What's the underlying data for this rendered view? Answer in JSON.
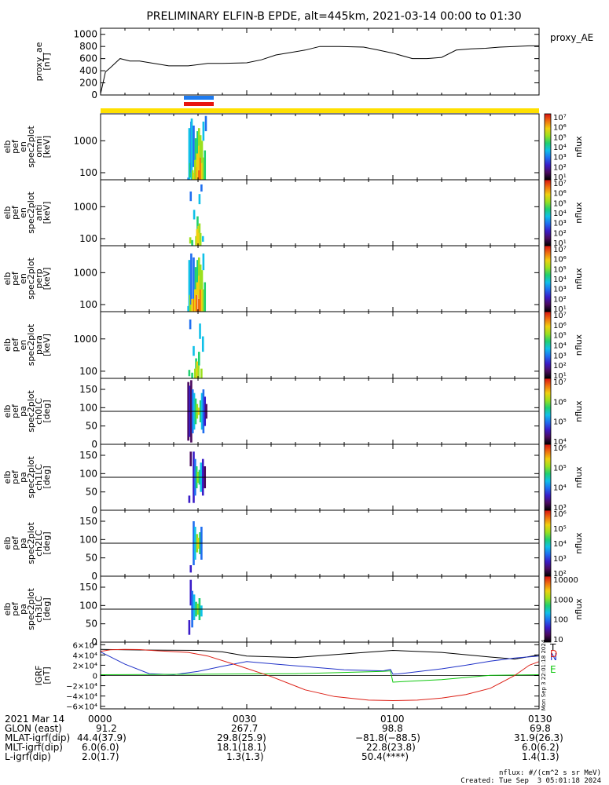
{
  "title": "PRELIMINARY ELFIN-B EPDE, alt=445km, 2021-03-14 00:00 to 01:30",
  "time_axis": {
    "start": "00:00",
    "end": "01:30",
    "ticks": [
      "0000",
      "0030",
      "0100",
      "0130"
    ],
    "tick_minutes": [
      0,
      30,
      60,
      90
    ]
  },
  "colors": {
    "frame": "#000000",
    "ae_line": "#000000",
    "status_yellow": "#ffe000",
    "status_blue": "#1e7bf0",
    "status_red": "#e8150e",
    "grf_total": "#000000",
    "grf_n": "#2032c8",
    "grf_e": "#10c810",
    "grf_d": "#dc1e14"
  },
  "chart_data": [
    {
      "type": "line",
      "id": "proxy_ae",
      "ylabel": "proxy_ae\n[nT]",
      "legend": "proxy_AE",
      "ylim": [
        0,
        1100
      ],
      "yticks": [
        0,
        200,
        400,
        600,
        800,
        1000
      ],
      "x_minutes": [
        0,
        1,
        2,
        4,
        6,
        8,
        14,
        18,
        22,
        25,
        30,
        33,
        36,
        42,
        45,
        49,
        54,
        57,
        60,
        64,
        67,
        70,
        73,
        76,
        79,
        82,
        85,
        88,
        90
      ],
      "values": [
        20,
        380,
        450,
        600,
        560,
        560,
        480,
        480,
        520,
        520,
        530,
        580,
        660,
        740,
        800,
        800,
        790,
        740,
        690,
        600,
        600,
        620,
        740,
        760,
        770,
        790,
        800,
        810,
        810
      ]
    },
    {
      "type": "heatmap",
      "id": "omni",
      "ylabel": "elb\npef\nen\nspec2plot\nomni\n[keV]",
      "ylog": true,
      "ylim": [
        60,
        7000
      ],
      "yticks": [
        100,
        1000
      ],
      "colorbar": {
        "label": "nflux",
        "ticks": [
          "10⁷",
          "10⁶",
          "10⁵",
          "10⁴",
          "10³",
          "10²",
          "10¹"
        ]
      },
      "cells": [
        [
          17.8,
          60,
          70,
          2
        ],
        [
          18.0,
          60,
          2500,
          3
        ],
        [
          18.2,
          70,
          200,
          4
        ],
        [
          18.4,
          100,
          4000,
          2
        ],
        [
          18.5,
          60,
          5000,
          3
        ],
        [
          18.7,
          60,
          120,
          5
        ],
        [
          18.9,
          150,
          3000,
          2
        ],
        [
          19.0,
          60,
          100,
          6
        ],
        [
          19.2,
          60,
          250,
          5
        ],
        [
          19.3,
          250,
          1200,
          4
        ],
        [
          19.5,
          60,
          150,
          7
        ],
        [
          19.6,
          60,
          400,
          6
        ],
        [
          19.7,
          400,
          2000,
          4
        ],
        [
          20.0,
          60,
          120,
          7
        ],
        [
          20.0,
          120,
          700,
          6
        ],
        [
          20.0,
          700,
          2500,
          5
        ],
        [
          20.3,
          60,
          300,
          7
        ],
        [
          20.3,
          300,
          1500,
          5
        ],
        [
          20.6,
          60,
          200,
          6
        ],
        [
          20.6,
          200,
          1000,
          5
        ],
        [
          20.9,
          60,
          300,
          5
        ],
        [
          20.9,
          1000,
          4000,
          3
        ],
        [
          21.2,
          60,
          500,
          4
        ],
        [
          21.4,
          2000,
          6000,
          2
        ]
      ]
    },
    {
      "type": "heatmap",
      "id": "anti",
      "ylabel": "elb\npef\nen\nspec2plot\nanti\n[keV]",
      "ylog": true,
      "ylim": [
        60,
        7000
      ],
      "yticks": [
        100,
        1000
      ],
      "colorbar": {
        "label": "nflux",
        "ticks": [
          "10⁷",
          "10⁶",
          "10⁵",
          "10⁴",
          "10³",
          "10²",
          "10¹"
        ]
      },
      "cells": [
        [
          18.2,
          70,
          110,
          5
        ],
        [
          18.3,
          1500,
          3000,
          2
        ],
        [
          18.6,
          60,
          90,
          4
        ],
        [
          19.0,
          400,
          800,
          3
        ],
        [
          19.4,
          60,
          120,
          5
        ],
        [
          19.6,
          60,
          200,
          6
        ],
        [
          19.7,
          200,
          500,
          4
        ],
        [
          19.9,
          60,
          250,
          6
        ],
        [
          20.1,
          150,
          300,
          5
        ],
        [
          20.1,
          1200,
          2500,
          3
        ],
        [
          20.3,
          60,
          150,
          5
        ],
        [
          20.5,
          3000,
          5000,
          2
        ],
        [
          20.8,
          80,
          120,
          3
        ]
      ]
    },
    {
      "type": "heatmap",
      "id": "perp",
      "ylabel": "elb\npef\nen\nspec2plot\nperp\n[keV]",
      "ylog": true,
      "ylim": [
        60,
        7000
      ],
      "yticks": [
        100,
        1000
      ],
      "colorbar": {
        "label": "nflux",
        "ticks": [
          "10⁷",
          "10⁶",
          "10⁵",
          "10⁴",
          "10³",
          "10²",
          "10¹"
        ]
      },
      "cells": [
        [
          17.8,
          60,
          90,
          3
        ],
        [
          18.0,
          60,
          2500,
          3
        ],
        [
          18.2,
          60,
          200,
          5
        ],
        [
          18.4,
          100,
          4000,
          2
        ],
        [
          18.6,
          60,
          150,
          6
        ],
        [
          18.9,
          150,
          3000,
          2
        ],
        [
          19.0,
          60,
          150,
          7
        ],
        [
          19.2,
          60,
          300,
          6
        ],
        [
          19.3,
          300,
          1500,
          4
        ],
        [
          19.5,
          60,
          200,
          7
        ],
        [
          19.6,
          200,
          500,
          6
        ],
        [
          19.7,
          500,
          2500,
          4
        ],
        [
          20.0,
          60,
          150,
          7
        ],
        [
          20.0,
          150,
          800,
          6
        ],
        [
          20.0,
          800,
          3000,
          5
        ],
        [
          20.3,
          60,
          300,
          7
        ],
        [
          20.3,
          300,
          1800,
          5
        ],
        [
          20.6,
          60,
          300,
          6
        ],
        [
          20.6,
          300,
          1200,
          5
        ],
        [
          20.9,
          60,
          300,
          5
        ],
        [
          20.9,
          1200,
          4000,
          3
        ],
        [
          21.2,
          60,
          500,
          4
        ]
      ]
    },
    {
      "type": "heatmap",
      "id": "para",
      "ylabel": "elb\npef\nen\nspec2plot\npara\n[keV]",
      "ylog": true,
      "ylim": [
        60,
        7000
      ],
      "yticks": [
        100,
        1000
      ],
      "colorbar": {
        "label": "nflux",
        "ticks": [
          "10⁷",
          "10⁶",
          "10⁵",
          "10⁴",
          "10³",
          "10²",
          "10¹"
        ]
      },
      "cells": [
        [
          18.0,
          70,
          110,
          4
        ],
        [
          18.2,
          2000,
          4000,
          2
        ],
        [
          18.6,
          60,
          90,
          4
        ],
        [
          18.9,
          300,
          600,
          3
        ],
        [
          19.2,
          60,
          120,
          5
        ],
        [
          19.4,
          120,
          250,
          4
        ],
        [
          19.6,
          60,
          200,
          6
        ],
        [
          19.9,
          60,
          150,
          5
        ],
        [
          20.0,
          150,
          400,
          4
        ],
        [
          20.2,
          1000,
          3000,
          3
        ],
        [
          20.5,
          60,
          120,
          5
        ],
        [
          20.8,
          400,
          1200,
          3
        ]
      ]
    },
    {
      "type": "heatmap",
      "id": "ch0LC",
      "ylabel": "elb\npef\npa\nspec2plot\nch0LC\n[deg]",
      "ylim": [
        0,
        180
      ],
      "yticks": [
        0,
        50,
        100,
        150
      ],
      "hline": 90,
      "colorbar": {
        "label": "nflux",
        "ticks": [
          "10⁷",
          "10⁶",
          "10⁵",
          "10⁴"
        ]
      },
      "cells": [
        [
          17.8,
          10,
          170,
          0
        ],
        [
          18.1,
          20,
          160,
          1
        ],
        [
          18.4,
          5,
          175,
          0
        ],
        [
          18.7,
          30,
          150,
          2
        ],
        [
          19.0,
          40,
          140,
          3
        ],
        [
          19.3,
          55,
          125,
          4
        ],
        [
          19.6,
          70,
          110,
          5
        ],
        [
          20.0,
          80,
          100,
          6
        ],
        [
          20.3,
          60,
          120,
          4
        ],
        [
          20.6,
          40,
          140,
          3
        ],
        [
          20.9,
          30,
          150,
          2
        ],
        [
          21.2,
          50,
          130,
          1
        ],
        [
          21.5,
          70,
          110,
          0
        ]
      ]
    },
    {
      "type": "heatmap",
      "id": "ch1LC",
      "ylabel": "elb\npef\npa\nspec2plot\nch1LC\n[deg]",
      "ylim": [
        0,
        180
      ],
      "yticks": [
        0,
        50,
        100,
        150
      ],
      "hline": 90,
      "colorbar": {
        "label": "nflux",
        "ticks": [
          "10⁶",
          "10⁵",
          "10⁴",
          "10³"
        ]
      },
      "cells": [
        [
          18.0,
          20,
          40,
          1
        ],
        [
          18.3,
          120,
          160,
          0
        ],
        [
          18.9,
          20,
          160,
          1
        ],
        [
          19.2,
          40,
          140,
          2
        ],
        [
          19.5,
          60,
          120,
          4
        ],
        [
          19.8,
          75,
          105,
          5
        ],
        [
          20.1,
          70,
          110,
          4
        ],
        [
          20.4,
          50,
          130,
          3
        ],
        [
          20.8,
          40,
          140,
          1
        ],
        [
          21.2,
          60,
          120,
          0
        ]
      ]
    },
    {
      "type": "heatmap",
      "id": "ch2LC",
      "ylabel": "elb\npef\npa\nspec2plot\nch2LC\n[deg]",
      "ylim": [
        0,
        180
      ],
      "yticks": [
        0,
        50,
        100,
        150
      ],
      "hline": 90,
      "colorbar": {
        "label": "nflux",
        "ticks": [
          "10⁶",
          "10⁵",
          "10⁴",
          "10³",
          "10²"
        ]
      },
      "cells": [
        [
          18.3,
          10,
          30,
          1
        ],
        [
          18.9,
          30,
          150,
          2
        ],
        [
          19.2,
          45,
          135,
          3
        ],
        [
          19.6,
          65,
          115,
          5
        ],
        [
          19.9,
          75,
          105,
          6
        ],
        [
          20.2,
          60,
          120,
          4
        ],
        [
          20.5,
          45,
          135,
          2
        ]
      ]
    },
    {
      "type": "heatmap",
      "id": "ch3LC",
      "ylabel": "elb\npef\npa\nspec2plot\nch3LC\n[deg]",
      "ylim": [
        0,
        180
      ],
      "yticks": [
        0,
        50,
        100,
        150
      ],
      "hline": 90,
      "colorbar": {
        "label": "nflux",
        "ticks": [
          "10000",
          "1000",
          "100",
          "10"
        ]
      },
      "cells": [
        [
          18.0,
          20,
          60,
          1
        ],
        [
          18.3,
          100,
          170,
          1
        ],
        [
          18.6,
          40,
          140,
          2
        ],
        [
          19.0,
          60,
          130,
          3
        ],
        [
          19.4,
          70,
          110,
          4
        ],
        [
          19.8,
          75,
          105,
          5
        ],
        [
          20.1,
          60,
          120,
          4
        ],
        [
          20.5,
          70,
          100,
          3
        ]
      ]
    },
    {
      "type": "line",
      "id": "igrf",
      "ylabel": "IGRF\n[nT]",
      "ylim": [
        -65000,
        65000
      ],
      "yticks": [
        -60000,
        -40000,
        -20000,
        0,
        20000,
        40000,
        60000
      ],
      "ytick_labels": [
        "−6×10⁴",
        "−4×10⁴",
        "−2×10⁴",
        "0",
        "2×10⁴",
        "4×10⁴",
        "6×10⁴"
      ],
      "series": [
        {
          "name": "T",
          "x_minutes": [
            0,
            5,
            10,
            20,
            25,
            30,
            40,
            50,
            60,
            70,
            80,
            85,
            90
          ],
          "values": [
            51000,
            50000,
            49500,
            49000,
            46000,
            38000,
            35000,
            42000,
            49000,
            45000,
            36000,
            32000,
            40000
          ]
        },
        {
          "name": "N",
          "x_minutes": [
            0,
            5,
            10,
            15,
            20,
            25,
            30,
            35,
            40,
            50,
            58,
            59.5,
            60,
            61,
            62,
            70,
            75,
            80,
            85,
            90
          ],
          "values": [
            46000,
            22000,
            3500,
            1500,
            8000,
            18000,
            27000,
            23000,
            19000,
            11000,
            9000,
            12000,
            2500,
            3000,
            4000,
            13000,
            20000,
            28000,
            34000,
            38000
          ]
        },
        {
          "name": "E",
          "x_minutes": [
            0,
            10,
            20,
            30,
            40,
            50,
            58,
            59.5,
            60,
            62,
            70,
            80,
            90
          ],
          "values": [
            1500,
            2000,
            2500,
            3000,
            3500,
            6000,
            8000,
            9000,
            -13000,
            -12000,
            -8000,
            500,
            1500
          ]
        },
        {
          "name": "D",
          "x_minutes": [
            0,
            2,
            5,
            8,
            12,
            18,
            22,
            28,
            35,
            42,
            48,
            55,
            60,
            65,
            70,
            75,
            80,
            85,
            88,
            90
          ],
          "values": [
            47000,
            50000,
            51000,
            50500,
            48000,
            45000,
            38000,
            20000,
            -2000,
            -28000,
            -41000,
            -48000,
            -49000,
            -48000,
            -44000,
            -37000,
            -25000,
            0,
            20000,
            27000
          ]
        }
      ]
    }
  ],
  "ephemeris": {
    "headers": [
      "2021 Mar 14",
      "GLON (east)",
      "MLAT-igrf(dip)",
      "MLT-igrf(dip)",
      "L-igrf(dip)"
    ],
    "columns": [
      [
        "0000",
        "91.2",
        "44.4(37.9)",
        "6.0(6.0)",
        "2.0(1.7)"
      ],
      [
        "0030",
        "267.7",
        "29.8(25.9)",
        "18.1(18.1)",
        "1.3(1.3)"
      ],
      [
        "0100",
        "98.8",
        "−81.8(−88.5)",
        "22.8(23.8)",
        "50.4(****)"
      ],
      [
        "0130",
        "69.8",
        "31.9(26.3)",
        "6.0(6.2)",
        "1.4(1.3)"
      ]
    ]
  },
  "credits": {
    "nflux_units": "nflux: #/(cm^2 s sr MeV)",
    "created": "Created: Tue Sep  3 05:01:18 2024",
    "side_stamp": "Mon Sep  3 22:01:18 2024"
  }
}
